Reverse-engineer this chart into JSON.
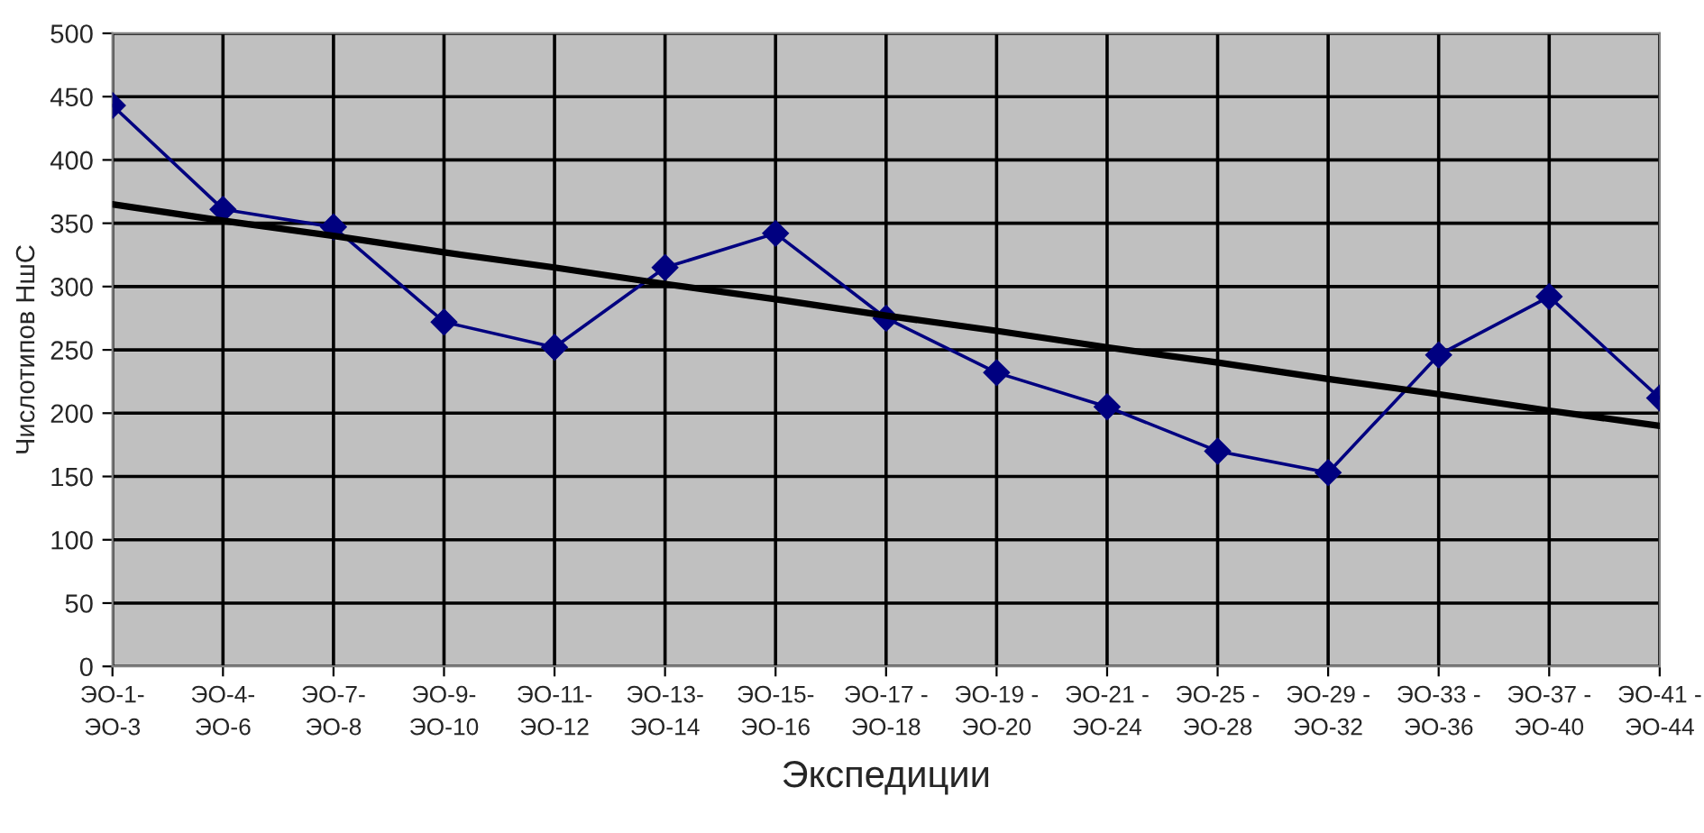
{
  "chart_data": {
    "type": "line",
    "xlabel": "Экспедиции",
    "ylabel": "Числотипов НшС",
    "categories": [
      "ЭО-1-\nЭО-3",
      "ЭО-4-\nЭО-6",
      "ЭО-7-\nЭО-8",
      "ЭО-9-\nЭО-10",
      "ЭО-11-\nЭО-12",
      "ЭО-13-\nЭО-14",
      "ЭО-15-\nЭО-16",
      "ЭО-17 -\nЭО-18",
      "ЭО-19 -\nЭО-20",
      "ЭО-21 -\nЭО-24",
      "ЭО-25 -\nЭО-28",
      "ЭО-29 -\nЭО-32",
      "ЭО-33 -\nЭО-36",
      "ЭО-37 -\nЭО-40",
      "ЭО-41 -\nЭО-44"
    ],
    "series": [
      {
        "color": "#000080",
        "marker": "diamond",
        "values": [
          443,
          361,
          347,
          272,
          252,
          315,
          342,
          275,
          232,
          205,
          170,
          153,
          246,
          292,
          212
        ]
      },
      {
        "type": "line",
        "color": "#000000",
        "marker": "none",
        "values": [
          365,
          352,
          340,
          327,
          315,
          302,
          290,
          277,
          265,
          252,
          240,
          227,
          215,
          202,
          190
        ]
      }
    ],
    "ylim": [
      0,
      500
    ],
    "yticks": [
      0,
      50,
      100,
      150,
      200,
      250,
      300,
      350,
      400,
      450,
      500
    ],
    "grid": true,
    "legend": false
  }
}
